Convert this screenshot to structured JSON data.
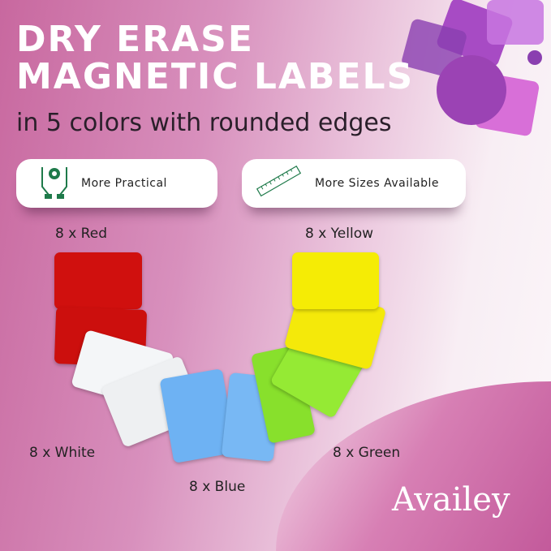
{
  "headline": {
    "line1": "DRY ERASE",
    "line2": "MAGNETIC LABELS",
    "subtitle": "in 5 colors with rounded edges"
  },
  "features": [
    {
      "icon": "hands-gear-icon",
      "label": "More Practical"
    },
    {
      "icon": "ruler-icon",
      "label": "More Sizes Available"
    }
  ],
  "quantities": {
    "red": "8 x Red",
    "yellow": "8 x Yellow",
    "white": "8 x White",
    "blue": "8 x Blue",
    "green": "8 x Green"
  },
  "colors": {
    "red": "#d0100e",
    "yellow": "#f5ec05",
    "white": "#f4f6f8",
    "blue": "#6eb2f3",
    "green": "#8fe830",
    "icon_green": "#1e7a4a"
  },
  "brand": {
    "logo": "Availey"
  }
}
